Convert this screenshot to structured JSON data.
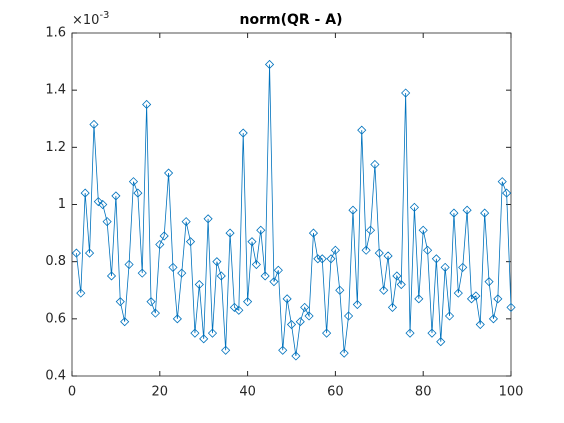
{
  "chart_data": {
    "type": "line",
    "title": "norm(QR - A)",
    "y_exponent": {
      "base": "×10",
      "power": "-3"
    },
    "x": [
      1,
      2,
      3,
      4,
      5,
      6,
      7,
      8,
      9,
      10,
      11,
      12,
      13,
      14,
      15,
      16,
      17,
      18,
      19,
      20,
      21,
      22,
      23,
      24,
      25,
      26,
      27,
      28,
      29,
      30,
      31,
      32,
      33,
      34,
      35,
      36,
      37,
      38,
      39,
      40,
      41,
      42,
      43,
      44,
      45,
      46,
      47,
      48,
      49,
      50,
      51,
      52,
      53,
      54,
      55,
      56,
      57,
      58,
      59,
      60,
      61,
      62,
      63,
      64,
      65,
      66,
      67,
      68,
      69,
      70,
      71,
      72,
      73,
      74,
      75,
      76,
      77,
      78,
      79,
      80,
      81,
      82,
      83,
      84,
      85,
      86,
      87,
      88,
      89,
      90,
      91,
      92,
      93,
      94,
      95,
      96,
      97,
      98,
      99,
      100
    ],
    "series": [
      {
        "color": "#0072bd",
        "values": [
          0.83,
          0.69,
          1.04,
          0.83,
          1.28,
          1.01,
          1.0,
          0.94,
          0.75,
          1.03,
          0.66,
          0.59,
          0.79,
          1.08,
          1.04,
          0.76,
          1.35,
          0.66,
          0.62,
          0.86,
          0.89,
          1.11,
          0.78,
          0.6,
          0.76,
          0.94,
          0.87,
          0.55,
          0.72,
          0.53,
          0.95,
          0.55,
          0.8,
          0.75,
          0.49,
          0.9,
          0.64,
          0.63,
          1.25,
          0.66,
          0.87,
          0.79,
          0.91,
          0.75,
          1.49,
          0.73,
          0.77,
          0.49,
          0.67,
          0.58,
          0.47,
          0.59,
          0.64,
          0.61,
          0.9,
          0.81,
          0.81,
          0.55,
          0.81,
          0.84,
          0.7,
          0.48,
          0.61,
          0.98,
          0.65,
          1.26,
          0.84,
          0.91,
          1.14,
          0.83,
          0.7,
          0.82,
          0.64,
          0.75,
          0.72,
          1.39,
          0.55,
          0.99,
          0.67,
          0.91,
          0.84,
          0.55,
          0.81,
          0.52,
          0.78,
          0.61,
          0.97,
          0.69,
          0.78,
          0.98,
          0.67,
          0.68,
          0.58,
          0.97,
          0.73,
          0.6,
          0.67,
          1.08,
          1.04,
          0.64
        ]
      }
    ],
    "xlim": [
      0,
      100
    ],
    "xticks": [
      0,
      20,
      40,
      60,
      80,
      100
    ],
    "ylim": [
      0.4,
      1.6
    ],
    "yticks": [
      0.4,
      0.6,
      0.8,
      1,
      1.2,
      1.4,
      1.6
    ]
  }
}
